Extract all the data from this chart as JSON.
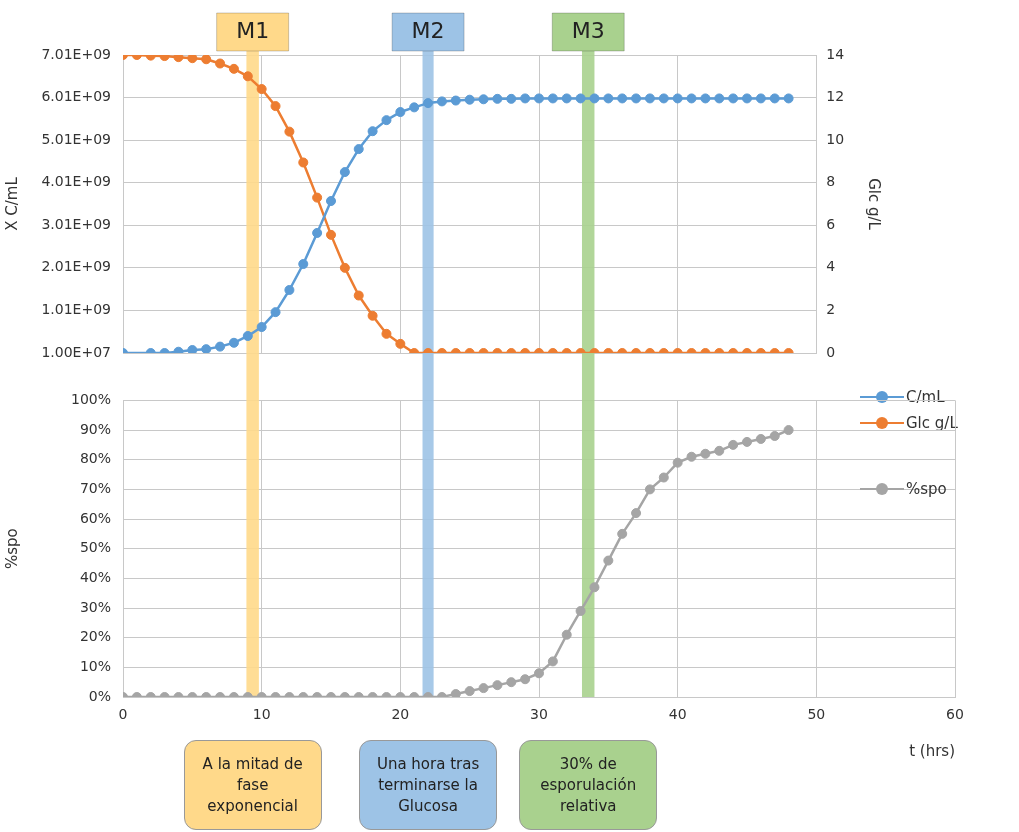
{
  "chart_data": [
    {
      "type": "line",
      "ylabel": "X C/mL",
      "y2label": "Glc g/L",
      "x": [
        0,
        1,
        2,
        3,
        4,
        5,
        6,
        7,
        8,
        9,
        10,
        11,
        12,
        13,
        14,
        15,
        16,
        17,
        18,
        19,
        20,
        21,
        22,
        23,
        24,
        25,
        26,
        27,
        28,
        29,
        30,
        31,
        32,
        33,
        34,
        35,
        36,
        37,
        38,
        39,
        40,
        41,
        42,
        43,
        44,
        45,
        46,
        47,
        48
      ],
      "series": [
        {
          "name": "C/mL",
          "color": "#5b9bd5",
          "x": [
            0,
            2,
            3,
            4,
            5,
            6,
            7,
            8,
            9,
            10,
            11,
            12,
            13,
            14,
            15,
            16,
            17,
            18,
            19,
            20,
            21,
            22,
            23,
            24,
            25,
            26,
            27,
            28,
            29,
            30,
            31,
            32,
            33,
            34,
            35,
            36,
            37,
            38,
            39,
            40,
            41,
            42,
            43,
            44,
            45,
            46,
            47,
            48
          ],
          "values": [
            10000000.0,
            10000000.0,
            10000000.0,
            40000000.0,
            80000000.0,
            100000000.0,
            160000000.0,
            250000000.0,
            410000000.0,
            620000000.0,
            970000000.0,
            1490000000.0,
            2100000000.0,
            2830000000.0,
            3580000000.0,
            4260000000.0,
            4800000000.0,
            5220000000.0,
            5480000000.0,
            5670000000.0,
            5780000000.0,
            5880000000.0,
            5920000000.0,
            5940000000.0,
            5960000000.0,
            5970000000.0,
            5980000000.0,
            5980000000.0,
            5990000000.0,
            5990000000.0,
            5990000000.0,
            5990000000.0,
            5990000000.0,
            5990000000.0,
            5990000000.0,
            5990000000.0,
            5990000000.0,
            5990000000.0,
            5990000000.0,
            5990000000.0,
            5990000000.0,
            5990000000.0,
            5990000000.0,
            5990000000.0,
            5990000000.0,
            5990000000.0,
            5990000000.0,
            5990000000.0
          ]
        },
        {
          "name": "Glc g/L",
          "color": "#ed7d31",
          "axis": "y2",
          "values": [
            14.0,
            14.0,
            13.97,
            13.95,
            13.9,
            13.85,
            13.8,
            13.6,
            13.35,
            13.0,
            12.4,
            11.6,
            10.4,
            8.95,
            7.3,
            5.55,
            4.0,
            2.7,
            1.75,
            0.9,
            0.43,
            0,
            0,
            0,
            0,
            0,
            0,
            0,
            0,
            0,
            0,
            0,
            0,
            0,
            0,
            0,
            0,
            0,
            0,
            0,
            0,
            0,
            0,
            0,
            0,
            0,
            0,
            0,
            0
          ]
        }
      ],
      "xlim": [
        0,
        50
      ],
      "xticks": [
        0,
        10,
        20,
        30,
        40,
        50
      ],
      "ylim": [
        10000000,
        7010000000
      ],
      "yticks": [
        {
          "value": 10000000,
          "label": "1.00E+07"
        },
        {
          "value": 1010000000,
          "label": "1.01E+09"
        },
        {
          "value": 2010000000,
          "label": "2.01E+09"
        },
        {
          "value": 3010000000,
          "label": "3.01E+09"
        },
        {
          "value": 4010000000,
          "label": "4.01E+09"
        },
        {
          "value": 5010000000,
          "label": "5.01E+09"
        },
        {
          "value": 6010000000,
          "label": "6.01E+09"
        },
        {
          "value": 7010000000,
          "label": "7.01E+09"
        }
      ],
      "y2lim": [
        0,
        14
      ],
      "y2ticks": [
        0,
        2,
        4,
        6,
        8,
        10,
        12,
        14
      ],
      "tick_labels": "y",
      "grid": true,
      "legend": "bottom right",
      "marker": "circle",
      "line_style": "solid",
      "bands": [
        {
          "axis": "x",
          "from": 8.9,
          "to": 9.8,
          "label": "M1",
          "color": "#ffd98a"
        },
        {
          "axis": "x",
          "from": 21.6,
          "to": 22.4,
          "label": "M2",
          "color": "#9dc3e6"
        },
        {
          "axis": "x",
          "from": 33.1,
          "to": 34.0,
          "label": "M3",
          "color": "#a9d18e"
        }
      ]
    },
    {
      "type": "line",
      "ylabel": "%spo",
      "xlabel": "t (hrs)",
      "x": [
        0,
        1,
        2,
        3,
        4,
        5,
        6,
        7,
        8,
        9,
        10,
        11,
        12,
        13,
        14,
        15,
        16,
        17,
        18,
        19,
        20,
        21,
        22,
        23,
        24,
        25,
        26,
        27,
        28,
        29,
        30,
        31,
        32,
        33,
        34,
        35,
        36,
        37,
        38,
        39,
        40,
        41,
        42,
        43,
        44,
        45,
        46,
        47,
        48
      ],
      "series": [
        {
          "name": "%spo",
          "color": "#a5a5a5",
          "values": [
            0,
            0,
            0,
            0,
            0,
            0,
            0,
            0,
            0,
            0,
            0,
            0,
            0,
            0,
            0,
            0,
            0,
            0,
            0,
            0,
            0,
            0,
            0,
            0,
            1,
            2,
            3,
            4,
            5,
            6,
            8,
            12,
            21,
            29,
            37,
            46,
            55,
            62,
            70,
            74,
            79,
            81,
            82,
            83,
            85,
            86,
            87,
            88,
            90
          ]
        }
      ],
      "xlim": [
        0,
        60
      ],
      "xticks": [
        0,
        10,
        20,
        30,
        40,
        50,
        60
      ],
      "ylim": [
        0,
        100
      ],
      "yticks": [
        {
          "value": 0,
          "label": "0%"
        },
        {
          "value": 10,
          "label": "10%"
        },
        {
          "value": 20,
          "label": "20%"
        },
        {
          "value": 30,
          "label": "30%"
        },
        {
          "value": 40,
          "label": "40%"
        },
        {
          "value": 50,
          "label": "50%"
        },
        {
          "value": 60,
          "label": "60%"
        },
        {
          "value": 70,
          "label": "70%"
        },
        {
          "value": 80,
          "label": "80%"
        },
        {
          "value": 90,
          "label": "90%"
        },
        {
          "value": 100,
          "label": "100%"
        }
      ],
      "grid": true,
      "legend": "top right",
      "marker": "circle",
      "line_style": "solid",
      "bands": [
        {
          "axis": "x",
          "from": 8.9,
          "to": 9.8,
          "color": "#ffd98a"
        },
        {
          "axis": "x",
          "from": 21.6,
          "to": 22.4,
          "color": "#9dc3e6"
        },
        {
          "axis": "x",
          "from": 33.1,
          "to": 34.0,
          "color": "#a9d18e"
        }
      ],
      "annotations": [
        "A la mitad de fase exponencial",
        "Una hora tras terminarse la Glucosa",
        "30% de esporulación relativa"
      ]
    }
  ]
}
